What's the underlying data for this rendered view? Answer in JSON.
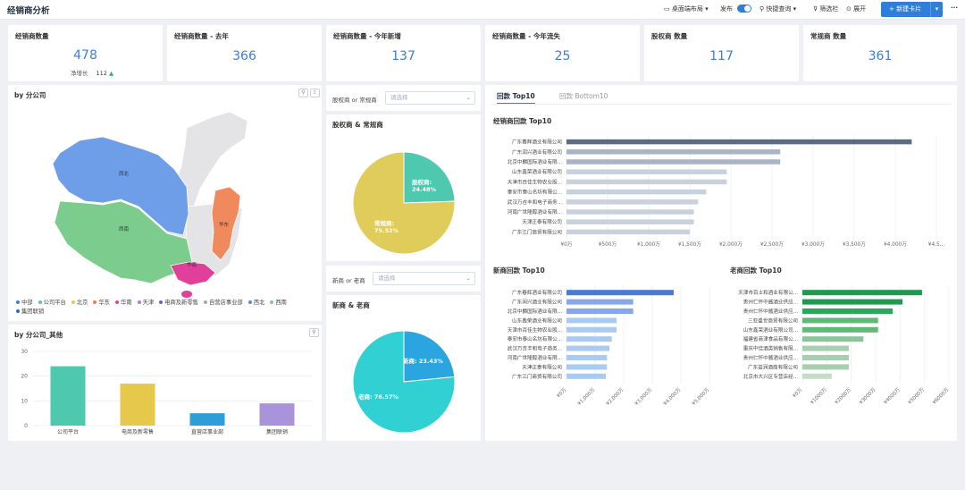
{
  "header": {
    "title": "经销商分析",
    "desktop": "桌面端布局",
    "publish": "发布",
    "quick": "快捷查询",
    "filter": "筛选栏",
    "expand": "展开",
    "new_card": "新建卡片",
    "more": "···"
  },
  "kpis": [
    {
      "title": "经销商数量",
      "value": "478",
      "sub_label": "净增长",
      "sub_value": "112"
    },
    {
      "title": "经销商数量 - 去年",
      "value": "366"
    },
    {
      "title": "经销商数量 - 今年新增",
      "value": "137"
    },
    {
      "title": "经销商数量 - 今年流失",
      "value": "25"
    },
    {
      "title": "股权商 数量",
      "value": "117"
    },
    {
      "title": "常规商 数量",
      "value": "361"
    }
  ],
  "map_panel": {
    "title": "by 分公司",
    "region_labels": [
      "西北",
      "西南",
      "华东",
      "华南"
    ],
    "legend": [
      {
        "name": "中部",
        "color": "#3a7fd5"
      },
      {
        "name": "公司平台",
        "color": "#4ec9b0"
      },
      {
        "name": "北京",
        "color": "#e6c84a"
      },
      {
        "name": "华东",
        "color": "#f07c4a"
      },
      {
        "name": "华南",
        "color": "#e0409a"
      },
      {
        "name": "天津",
        "color": "#b07ad8"
      },
      {
        "name": "电商及新零售",
        "color": "#7b57c9"
      },
      {
        "name": "自营店事业部",
        "color": "#a8a8a8"
      },
      {
        "name": "西北",
        "color": "#5b8ad6"
      },
      {
        "name": "西南",
        "color": "#7ccc8e"
      },
      {
        "name": "集团联销",
        "color": "#2b6fb8"
      }
    ]
  },
  "bar_panel": {
    "title": "by 分公司_其他"
  },
  "filter1": {
    "label": "股权商 or 常规商",
    "placeholder": "请选择"
  },
  "filter2": {
    "label": "新商 or 老商",
    "placeholder": "请选择"
  },
  "pie1": {
    "title": "股权商 & 常规商"
  },
  "pie2": {
    "title": "新商 & 老商"
  },
  "tabs": {
    "active": "回款 Top10",
    "inactive": "回款 Bottom10"
  },
  "top10": {
    "title": "经销商回款 Top10"
  },
  "new10": {
    "title": "新商回款 Top10"
  },
  "old10": {
    "title": "老商回款 Top10"
  },
  "chart_data": [
    {
      "type": "bar",
      "title": "by 分公司_其他",
      "categories": [
        "公司平台",
        "电商及新零售",
        "直营店事业部",
        "集团联销"
      ],
      "values": [
        24,
        17,
        5,
        9
      ],
      "colors": [
        "#4ec9b0",
        "#e6c84a",
        "#2e9ed8",
        "#a993db"
      ],
      "ylim": [
        0,
        30
      ],
      "yticks": [
        0,
        10,
        20,
        30
      ]
    },
    {
      "type": "pie",
      "title": "股权商 & 常规商",
      "slices": [
        {
          "name": "股权商",
          "label": "股权商:\n24.48%",
          "value": 24.48,
          "color": "#4ec9b0"
        },
        {
          "name": "常规商",
          "label": "常规商:\n75.52%",
          "value": 75.52,
          "color": "#e0cc5a"
        }
      ]
    },
    {
      "type": "pie",
      "title": "新商 & 老商",
      "slices": [
        {
          "name": "新商",
          "label": "新商: 23.43%",
          "value": 23.43,
          "color": "#2aa5e0"
        },
        {
          "name": "老商",
          "label": "老商: 76.57%",
          "value": 76.57,
          "color": "#31d1d3"
        }
      ]
    },
    {
      "type": "bar",
      "orientation": "horizontal",
      "title": "经销商回款 Top10",
      "categories": [
        "广东春辉酒业有限公司",
        "广东润兴酒业有限公司",
        "北京中麟国际酒业有限...",
        "山东鑫荣酒业有限公司",
        "天津市百佳生物农业股...",
        "泰安市泰山名坊有限公...",
        "武汉万吉丰和电子商务...",
        "河南广世隆醇酒业有限...",
        "天津正泰有限公司",
        "广东江门商贸有限公司"
      ],
      "values": [
        4200,
        2600,
        2600,
        1950,
        1950,
        1700,
        1600,
        1550,
        1550,
        1500
      ],
      "colors": [
        "#5c6b80",
        "#a9b4c4",
        "#a9b4c4",
        "#c9d1dc",
        "#c9d1dc",
        "#c9d1dc",
        "#c9d1dc",
        "#c9d1dc",
        "#c9d1dc",
        "#c9d1dc"
      ],
      "xticks": [
        "¥0万",
        "¥500万",
        "¥1,000万",
        "¥1,500万",
        "¥2,000万",
        "¥2,500万",
        "¥3,000万",
        "¥3,500万",
        "¥4,000万",
        "¥4,5..."
      ],
      "xlim": [
        0,
        4500
      ]
    },
    {
      "type": "bar",
      "orientation": "horizontal",
      "title": "新商回款 Top10",
      "categories": [
        "广东春辉酒业有限公司",
        "广东润兴酒业有限公司",
        "北京中麟国际酒业有限...",
        "山东鑫荣酒业有限公司",
        "天津市百佳生物农业股...",
        "泰安市泰山名坊有限公...",
        "武汉万吉丰和电子商务...",
        "河南广世隆醇酒业有限...",
        "天津正泰有限公司",
        "广东江门商贸有限公司"
      ],
      "values": [
        4500,
        2800,
        2800,
        2100,
        2100,
        1900,
        1800,
        1700,
        1700,
        1650
      ],
      "colors": [
        "#4a79d6",
        "#86a8ea",
        "#86a8ea",
        "#a9cbf2",
        "#a9cbf2",
        "#a9cbf2",
        "#a9cbf2",
        "#a9cbf2",
        "#a9cbf2",
        "#a9cbf2"
      ],
      "xticks": [
        "¥0万",
        "¥1,000万",
        "¥2,000万",
        "¥3,000万",
        "¥4,000万",
        "¥5,000万"
      ],
      "xlim": [
        0,
        6000
      ]
    },
    {
      "type": "bar",
      "orientation": "horizontal",
      "title": "老商回款 Top10",
      "categories": [
        "天津市百士和酒业有限公...",
        "贵州仁怀中酱酒业供应...",
        "贵州仁怀中酱酒业供应...",
        "三亚盛世商贸有限公司",
        "山东鑫荣酒业有限公司...",
        "福建省商津食品有限公...",
        "重庆中佳酒类销售有限...",
        "贵州仁怀中酱酒业供应...",
        "广东益润酒商有限公司",
        "北京市大兴区专营店经..."
      ],
      "values": [
        4900,
        4100,
        3700,
        3100,
        3100,
        2500,
        1900,
        1900,
        1900,
        1200
      ],
      "colors": [
        "#1e9a4e",
        "#1e9a4e",
        "#2ca85a",
        "#62b876",
        "#62b876",
        "#8cc59a",
        "#a6cfb0",
        "#a6cfb0",
        "#a6cfb0",
        "#c5dcc9"
      ],
      "xticks": [
        "¥0万",
        "¥1000万",
        "¥2000万",
        "¥3000万",
        "¥4000万",
        "¥5000万",
        "¥6000万"
      ],
      "xlim": [
        0,
        6000
      ]
    }
  ]
}
